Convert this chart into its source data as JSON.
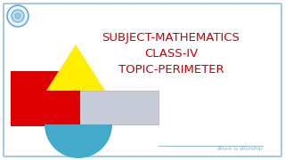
{
  "bg_color": "#ffffff",
  "border_color": "#a8c8dc",
  "title_lines": [
    "SUBJECT-MATHEMATICS",
    "CLASS-IV",
    "TOPIC-PERIMETER"
  ],
  "title_color": "#cc0000",
  "title_fontsize": 9.5,
  "watermark_text": "Work is Worship",
  "watermark_color": "#88aabb",
  "rect_color": "#dd0000",
  "triangle_color": "#ffee00",
  "circle_color": "#44aacc",
  "rect_gray_color": "#c8ccd8",
  "logo_border_color": "#66aacc",
  "logo_fill_color": "#e8f4ff"
}
